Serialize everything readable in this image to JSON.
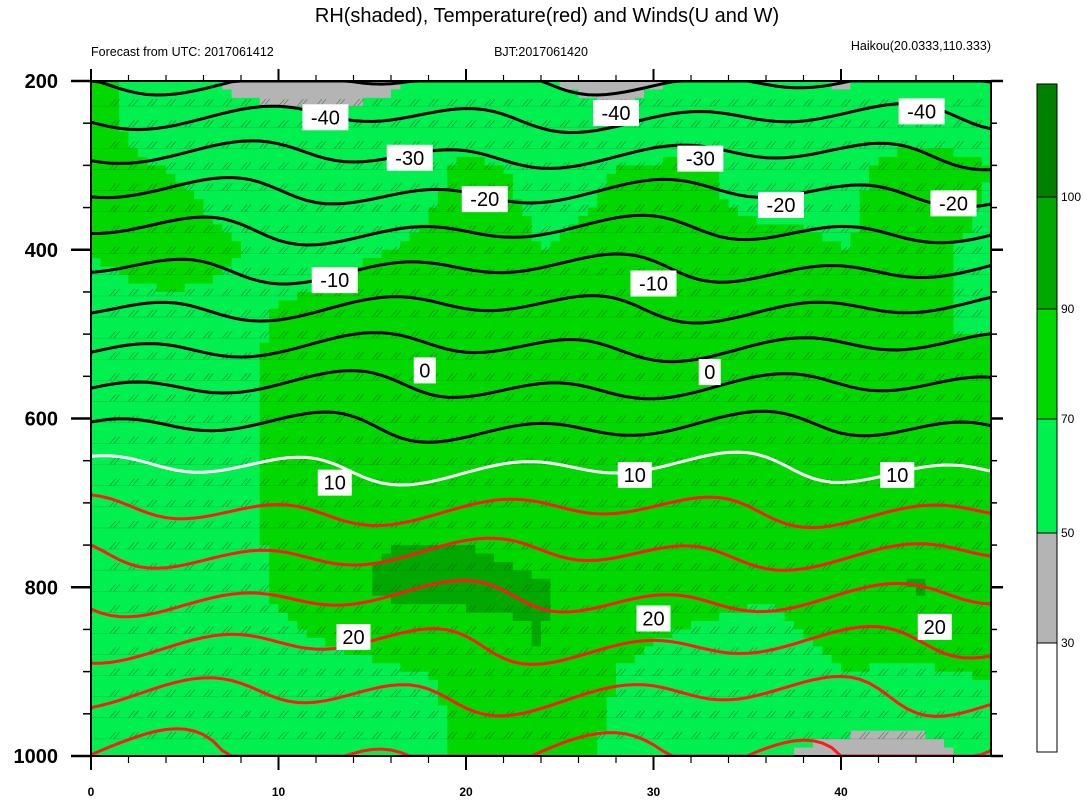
{
  "title": "RH(shaded), Temperature(red) and Winds(U and W)",
  "subtitle_left": "Forecast from UTC: 2017061412",
  "subtitle_center": "BJT:2017061420",
  "subtitle_right": "Haikou(20.0333,110.333)",
  "chart_data": {
    "type": "heatmap",
    "x_ticks": [
      "0",
      "10",
      "20",
      "30",
      "40"
    ],
    "x_range": [
      0,
      48
    ],
    "y_ticks": [
      "200",
      "400",
      "600",
      "800",
      "1000"
    ],
    "y_range": [
      200,
      1000
    ],
    "y_reversed": true,
    "colorbar": {
      "ticks": [
        "30",
        "50",
        "70",
        "90",
        "100"
      ],
      "colors": [
        "#ffffff",
        "#b4b4b4",
        "#00f050",
        "#00d800",
        "#00a800",
        "#008000"
      ]
    },
    "rh_field": {
      "x": [
        0,
        4,
        8,
        12,
        16,
        20,
        24,
        28,
        32,
        36,
        40,
        44,
        48
      ],
      "p": [
        200,
        300,
        400,
        500,
        600,
        700,
        800,
        900,
        1000
      ],
      "rh": [
        [
          75,
          60,
          45,
          42,
          48,
          55,
          52,
          40,
          55,
          60,
          48,
          56,
          62
        ],
        [
          72,
          70,
          68,
          66,
          62,
          72,
          68,
          70,
          72,
          66,
          68,
          74,
          70
        ],
        [
          70,
          72,
          70,
          68,
          70,
          74,
          70,
          71,
          70,
          72,
          70,
          71,
          69
        ],
        [
          68,
          68,
          69,
          72,
          75,
          78,
          77,
          72,
          70,
          71,
          71,
          70,
          70
        ],
        [
          68,
          66,
          68,
          77,
          78,
          80,
          76,
          74,
          72,
          74,
          74,
          76,
          78
        ],
        [
          66,
          64,
          66,
          80,
          86,
          84,
          76,
          72,
          71,
          72,
          73,
          76,
          78
        ],
        [
          62,
          60,
          64,
          82,
          94,
          96,
          92,
          76,
          74,
          72,
          78,
          92,
          80
        ],
        [
          56,
          54,
          58,
          62,
          68,
          72,
          90,
          70,
          65,
          62,
          70,
          68,
          72
        ],
        [
          66,
          52,
          60,
          70,
          62,
          72,
          78,
          66,
          64,
          52,
          44,
          40,
          60
        ]
      ]
    },
    "temperature_labels": [
      {
        "value": "-40",
        "x": 12.5,
        "p": 243
      },
      {
        "value": "-40",
        "x": 28.0,
        "p": 238
      },
      {
        "value": "-40",
        "x": 44.3,
        "p": 236
      },
      {
        "value": "-30",
        "x": 17.0,
        "p": 291
      },
      {
        "value": "-30",
        "x": 32.5,
        "p": 292
      },
      {
        "value": "-20",
        "x": 21.0,
        "p": 340
      },
      {
        "value": "-20",
        "x": 36.8,
        "p": 347
      },
      {
        "value": "-20",
        "x": 46.0,
        "p": 345
      },
      {
        "value": "-10",
        "x": 13.0,
        "p": 436
      },
      {
        "value": "-10",
        "x": 30.0,
        "p": 440
      },
      {
        "value": "0",
        "x": 17.8,
        "p": 543
      },
      {
        "value": "0",
        "x": 33.0,
        "p": 545
      },
      {
        "value": "10",
        "x": 13.0,
        "p": 676
      },
      {
        "value": "10",
        "x": 29.0,
        "p": 667
      },
      {
        "value": "10",
        "x": 43.0,
        "p": 667
      },
      {
        "value": "20",
        "x": 14.0,
        "p": 859
      },
      {
        "value": "20",
        "x": 30.0,
        "p": 837
      },
      {
        "value": "20",
        "x": 45.0,
        "p": 847
      }
    ],
    "isotherm_levels": [
      -50,
      -45,
      -40,
      -35,
      -30,
      -25,
      -20,
      -15,
      -10,
      -5,
      0,
      5,
      10,
      15,
      20,
      25,
      30
    ]
  }
}
